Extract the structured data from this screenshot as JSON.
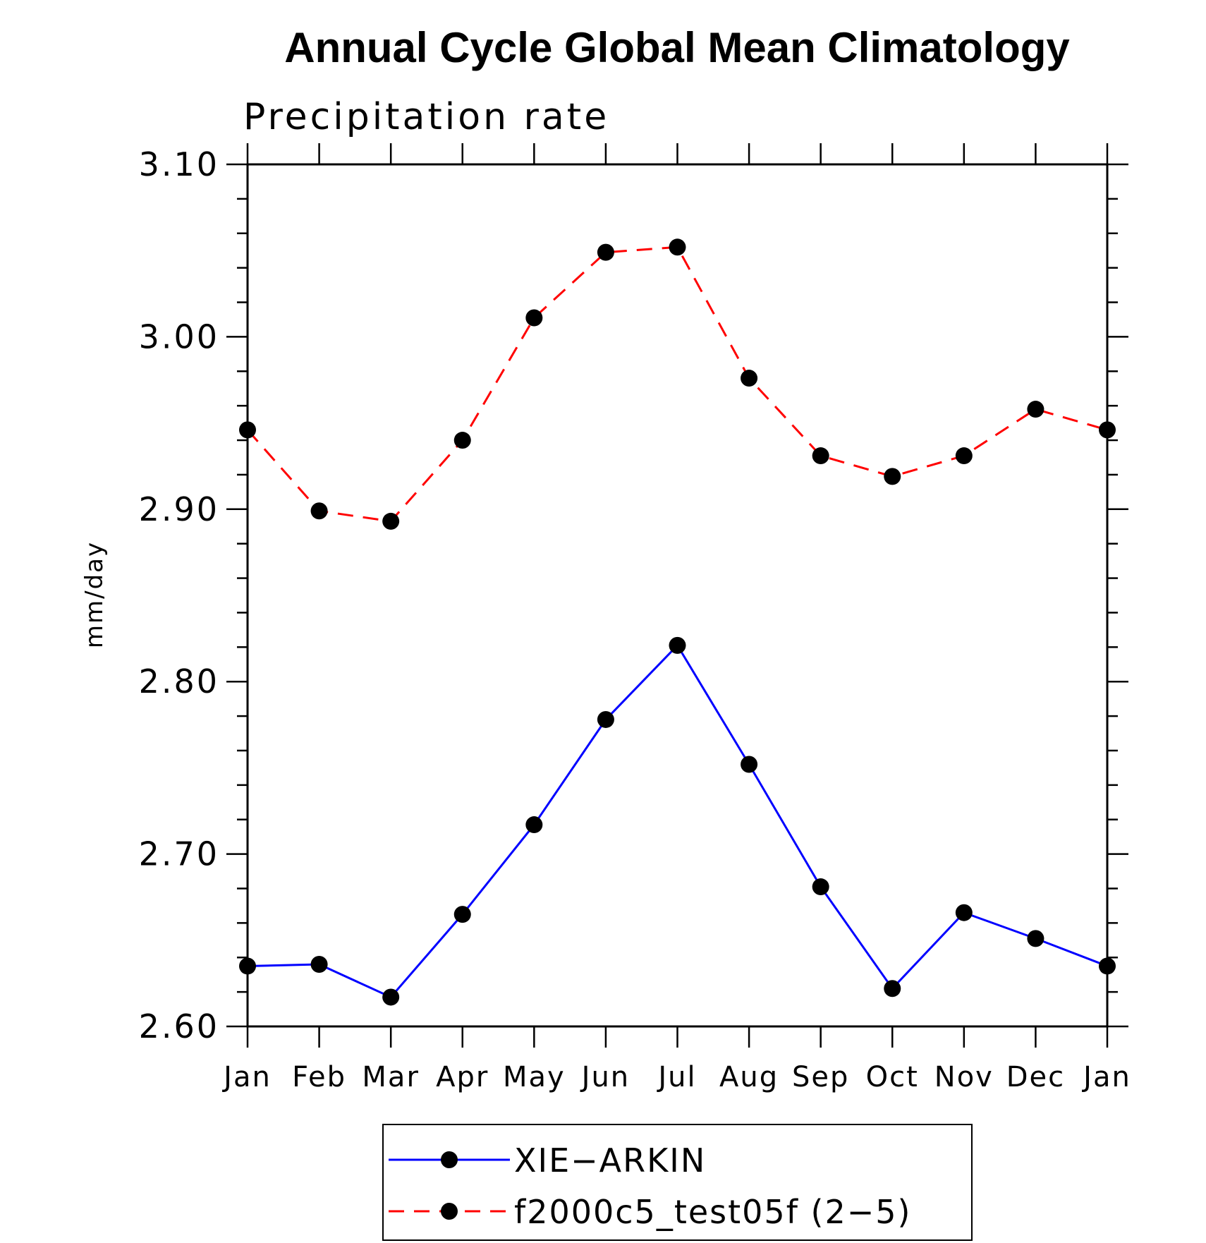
{
  "chart_data": {
    "type": "line",
    "title": "Annual Cycle Global Mean Climatology",
    "subtitle": "Precipitation rate",
    "xlabel": "",
    "ylabel": "mm/day",
    "categories": [
      "Jan",
      "Feb",
      "Mar",
      "Apr",
      "May",
      "Jun",
      "Jul",
      "Aug",
      "Sep",
      "Oct",
      "Nov",
      "Dec",
      "Jan"
    ],
    "ylim": [
      2.6,
      3.1
    ],
    "yticks": [
      "2.60",
      "2.70",
      "2.80",
      "2.90",
      "3.00",
      "3.10"
    ],
    "legend_position": "bottom",
    "series": [
      {
        "name": "XIE−ARKIN",
        "color": "#0000ff",
        "dash": "solid",
        "marker": "filled-circle",
        "values": [
          2.635,
          2.636,
          2.617,
          2.665,
          2.717,
          2.778,
          2.821,
          2.752,
          2.681,
          2.622,
          2.666,
          2.651,
          2.635
        ]
      },
      {
        "name": "f2000c5_test05f (2−5)",
        "color": "#ff0000",
        "dash": "dashed",
        "marker": "filled-circle",
        "values": [
          2.946,
          2.899,
          2.893,
          2.94,
          3.011,
          3.049,
          3.052,
          2.976,
          2.931,
          2.919,
          2.931,
          2.958,
          2.946
        ]
      }
    ]
  }
}
